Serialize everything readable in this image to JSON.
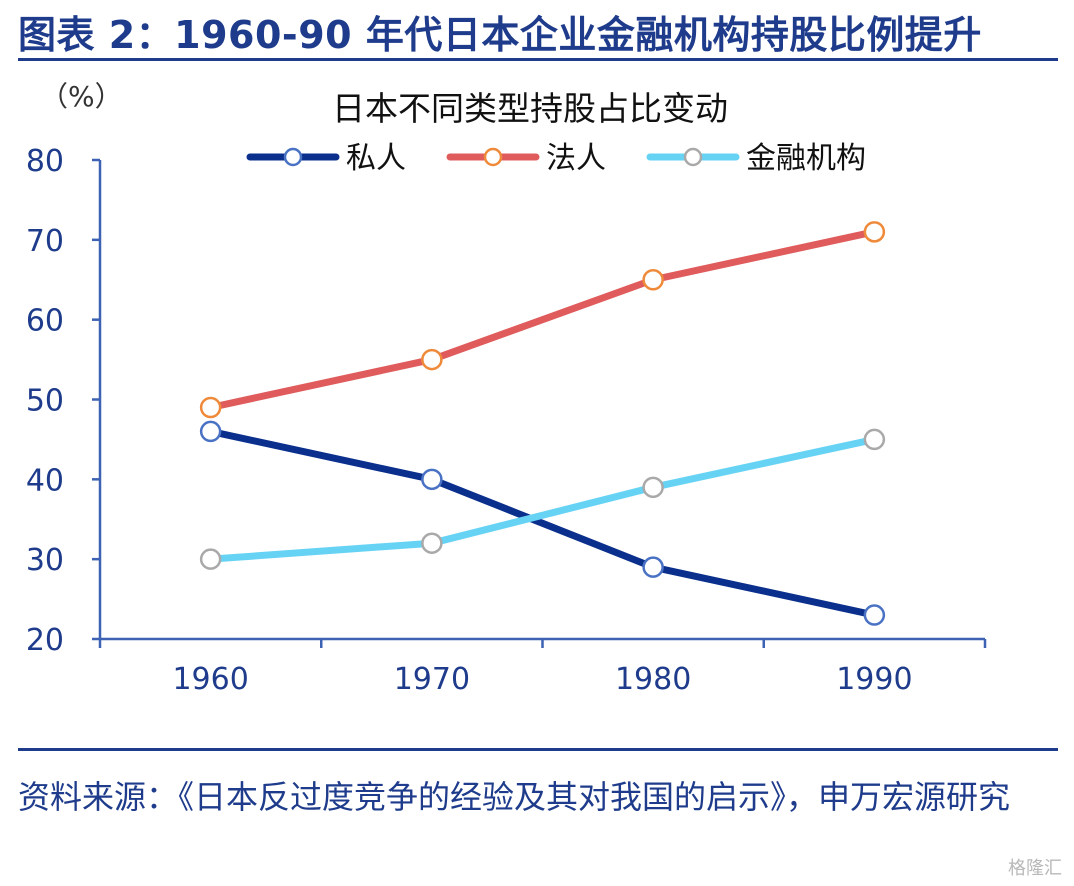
{
  "figure": {
    "title": "图表 2：1960-90 年代日本企业金融机构持股比例提升",
    "source": "资料来源：《日本反过度竞争的经验及其对我国的启示》，申万宏源研究",
    "watermark": "格隆汇"
  },
  "chart_data": {
    "type": "line",
    "title": "日本不同类型持股占比变动",
    "ylabel": "（%）",
    "xlabel": "",
    "categories": [
      "1960",
      "1970",
      "1980",
      "1990"
    ],
    "y_ticks": [
      "80",
      "70",
      "60",
      "50",
      "40",
      "30",
      "20"
    ],
    "ylim": [
      20,
      80
    ],
    "grid": false,
    "legend_position": "top",
    "series": [
      {
        "name": "私人",
        "values": [
          46,
          40,
          29,
          23
        ],
        "color": "#0b2f8c",
        "marker_color": "#4a72c4"
      },
      {
        "name": "法人",
        "values": [
          49,
          55,
          65,
          71
        ],
        "color": "#e05c5c",
        "marker_color": "#ee8a3a"
      },
      {
        "name": "金融机构",
        "values": [
          30,
          32,
          39,
          45
        ],
        "color": "#66d3f5",
        "marker_color": "#a9a9a9"
      }
    ],
    "colors": {
      "axis": "#3d62b3",
      "text": "#1f3c8c"
    }
  }
}
